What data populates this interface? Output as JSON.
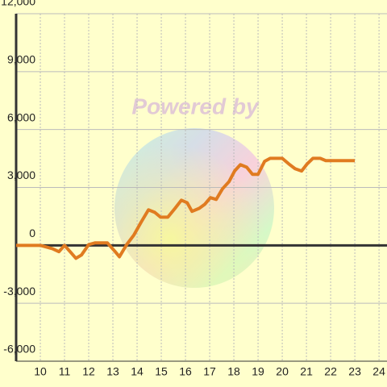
{
  "chart_data": {
    "type": "line",
    "watermark": "Powered by",
    "x": [
      9,
      10,
      10.5,
      10.77,
      11,
      11.27,
      11.47,
      11.7,
      12,
      12.27,
      12.77,
      13.07,
      13.27,
      13.57,
      13.87,
      14.17,
      14.47,
      14.73,
      14.97,
      15.27,
      15.57,
      15.83,
      16.07,
      16.27,
      16.57,
      16.8,
      17.03,
      17.27,
      17.53,
      17.8,
      18.03,
      18.27,
      18.53,
      18.77,
      19,
      19.27,
      19.5,
      20,
      20.27,
      20.53,
      20.8,
      21.03,
      21.27,
      21.57,
      21.8,
      23
    ],
    "series": [
      {
        "color": "#e07b20",
        "values": [
          0,
          0,
          -170,
          -330,
          0,
          -380,
          -670,
          -500,
          40,
          130,
          130,
          -290,
          -590,
          40,
          540,
          1210,
          1840,
          1710,
          1460,
          1460,
          1920,
          2340,
          2210,
          1760,
          1920,
          2130,
          2470,
          2380,
          2930,
          3300,
          3850,
          4180,
          4050,
          3680,
          3680,
          4350,
          4510,
          4510,
          4220,
          3970,
          3850,
          4220,
          4510,
          4510,
          4390,
          4390
        ]
      }
    ],
    "xlim": [
      9,
      24.33
    ],
    "xticks": [
      10,
      11,
      12,
      13,
      14,
      15,
      16,
      17,
      18,
      19,
      20,
      21,
      22,
      23,
      24
    ],
    "ylim": [
      -6000,
      12000
    ],
    "yticks": [
      {
        "value": -6000,
        "label": "-6,000"
      },
      {
        "value": -3000,
        "label": "-3,000"
      },
      0,
      {
        "value": 3000,
        "label": "3,000"
      },
      {
        "value": 6000,
        "label": "6,000"
      },
      {
        "value": 9000,
        "label": "9,000"
      },
      {
        "value": 12000,
        "label": "12,000"
      }
    ],
    "grid": true
  }
}
